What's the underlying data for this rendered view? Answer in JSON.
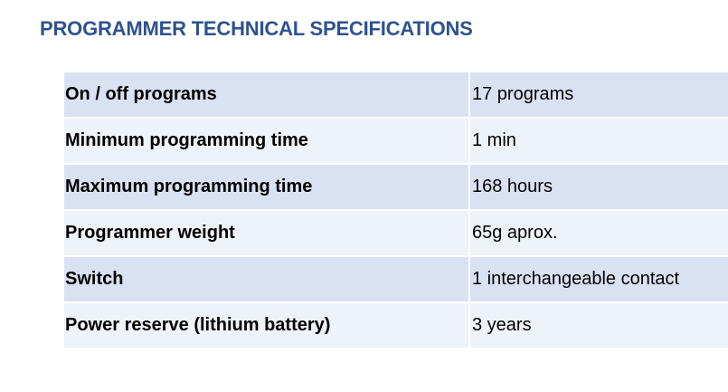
{
  "title": "PROGRAMMER TECHNICAL SPECIFICATIONS",
  "specs": [
    {
      "label": "On / off programs",
      "value": "17 programs"
    },
    {
      "label": "Minimum programming time",
      "value": "1 min"
    },
    {
      "label": "Maximum programming time",
      "value": "168 hours"
    },
    {
      "label": "Programmer weight",
      "value": "65g aprox."
    },
    {
      "label": "Switch",
      "value": "1 interchangeable contact"
    },
    {
      "label": "Power reserve (lithium battery)",
      "value": "3 years"
    }
  ],
  "colors": {
    "title": "#2e528f",
    "row_dark": "#d9e2f3",
    "row_light": "#eef2f9"
  }
}
